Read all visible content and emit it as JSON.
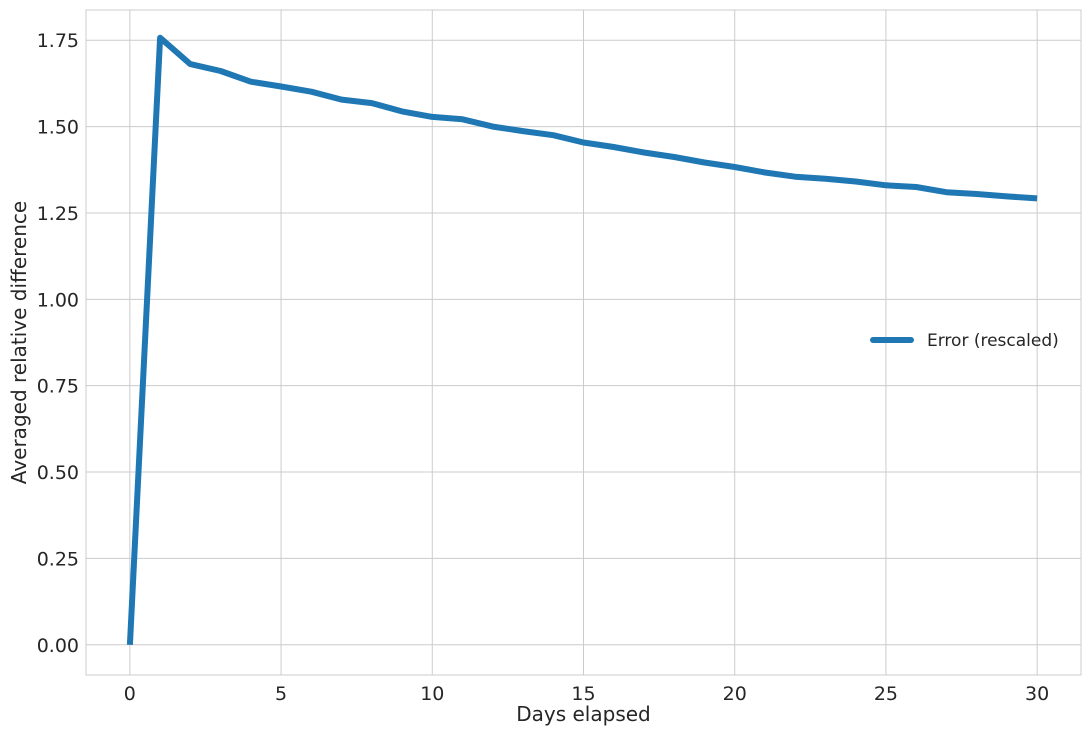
{
  "chart_data": {
    "type": "line",
    "xlabel": "Days elapsed",
    "ylabel": "Averaged relative difference",
    "xlim": [
      -1.45,
      31.45
    ],
    "ylim": [
      -0.0875,
      1.8375
    ],
    "xticks": [
      0,
      5,
      10,
      15,
      20,
      25,
      30
    ],
    "yticks": [
      0.0,
      0.25,
      0.5,
      0.75,
      1.0,
      1.25,
      1.5,
      1.75
    ],
    "xtick_labels": [
      "0",
      "5",
      "10",
      "15",
      "20",
      "25",
      "30"
    ],
    "ytick_labels": [
      "0.00",
      "0.25",
      "0.50",
      "0.75",
      "1.00",
      "1.25",
      "1.50",
      "1.75"
    ],
    "grid": true,
    "legend_position": "center-right",
    "series": [
      {
        "name": "Error (rescaled)",
        "color": "#1f77b4",
        "x": [
          0,
          1,
          2,
          3,
          4,
          5,
          6,
          7,
          8,
          9,
          10,
          11,
          12,
          13,
          14,
          15,
          16,
          17,
          18,
          19,
          20,
          21,
          22,
          23,
          24,
          25,
          26,
          27,
          28,
          29,
          30
        ],
        "y": [
          0.0,
          1.757,
          1.681,
          1.661,
          1.63,
          1.616,
          1.601,
          1.578,
          1.568,
          1.544,
          1.528,
          1.521,
          1.5,
          1.487,
          1.475,
          1.454,
          1.441,
          1.425,
          1.412,
          1.396,
          1.383,
          1.367,
          1.355,
          1.349,
          1.341,
          1.33,
          1.325,
          1.31,
          1.305,
          1.298,
          1.292
        ]
      }
    ]
  }
}
